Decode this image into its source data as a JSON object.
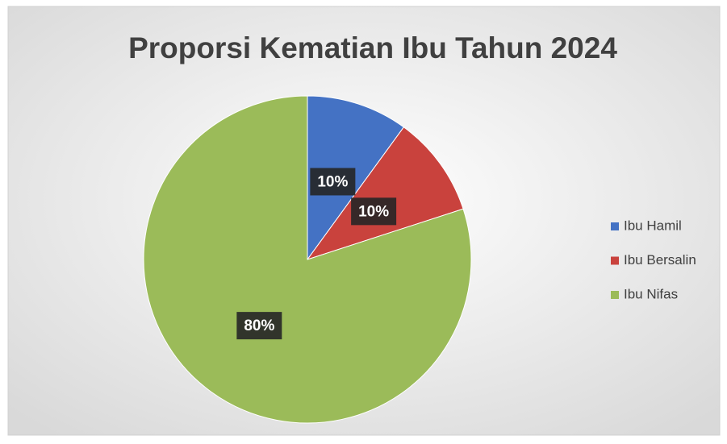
{
  "chart_data": {
    "type": "pie",
    "title": "Proporsi Kematian Ibu Tahun 2024",
    "categories": [
      "Ibu Hamil",
      "Ibu Bersalin",
      "Ibu Nifas"
    ],
    "values": [
      10,
      10,
      80
    ],
    "value_labels": [
      "10%",
      "10%",
      "80%"
    ],
    "colors": [
      "#4472c4",
      "#c9423d",
      "#9bbb59"
    ],
    "legend": "right"
  }
}
